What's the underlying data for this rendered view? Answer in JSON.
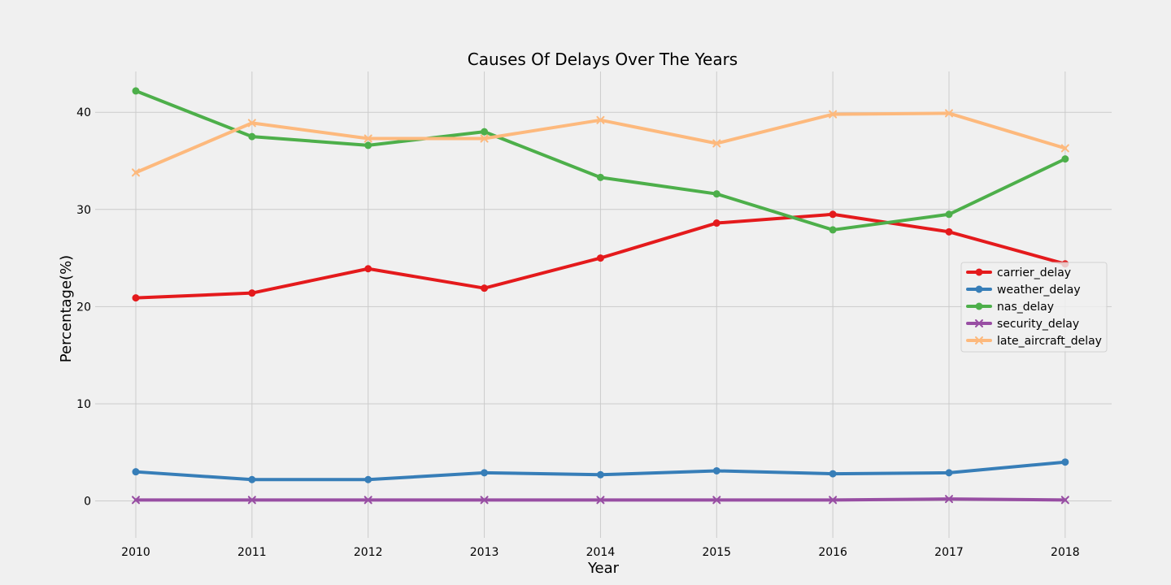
{
  "chart_data": {
    "type": "line",
    "title": "Causes Of Delays Over The Years",
    "xlabel": "Year",
    "ylabel": "Percentage(%)",
    "x": [
      2010,
      2011,
      2012,
      2013,
      2014,
      2015,
      2016,
      2017,
      2018
    ],
    "xlim": [
      2009.65,
      2018.4
    ],
    "ylim": [
      -3.8,
      44.2
    ],
    "yticks": [
      0,
      10,
      20,
      30,
      40
    ],
    "grid": true,
    "legend_position": "center-right",
    "series": [
      {
        "name": "carrier_delay",
        "color": "#e41a1c",
        "marker": "circle",
        "values": [
          20.9,
          21.4,
          23.9,
          21.9,
          25.0,
          28.6,
          29.5,
          27.7,
          24.4
        ]
      },
      {
        "name": "weather_delay",
        "color": "#377eb8",
        "marker": "circle",
        "values": [
          3.0,
          2.2,
          2.2,
          2.9,
          2.7,
          3.1,
          2.8,
          2.9,
          4.0
        ]
      },
      {
        "name": "nas_delay",
        "color": "#4daf4a",
        "marker": "circle",
        "values": [
          42.2,
          37.5,
          36.6,
          38.0,
          33.3,
          31.6,
          27.9,
          29.5,
          35.2
        ]
      },
      {
        "name": "security_delay",
        "color": "#984ea3",
        "marker": "x",
        "values": [
          0.1,
          0.1,
          0.1,
          0.1,
          0.1,
          0.1,
          0.1,
          0.2,
          0.1
        ]
      },
      {
        "name": "late_aircraft_delay",
        "color": "#fdb97d",
        "marker": "x",
        "values": [
          33.8,
          38.9,
          37.3,
          37.3,
          39.2,
          36.8,
          39.8,
          39.9,
          36.3
        ]
      }
    ]
  }
}
